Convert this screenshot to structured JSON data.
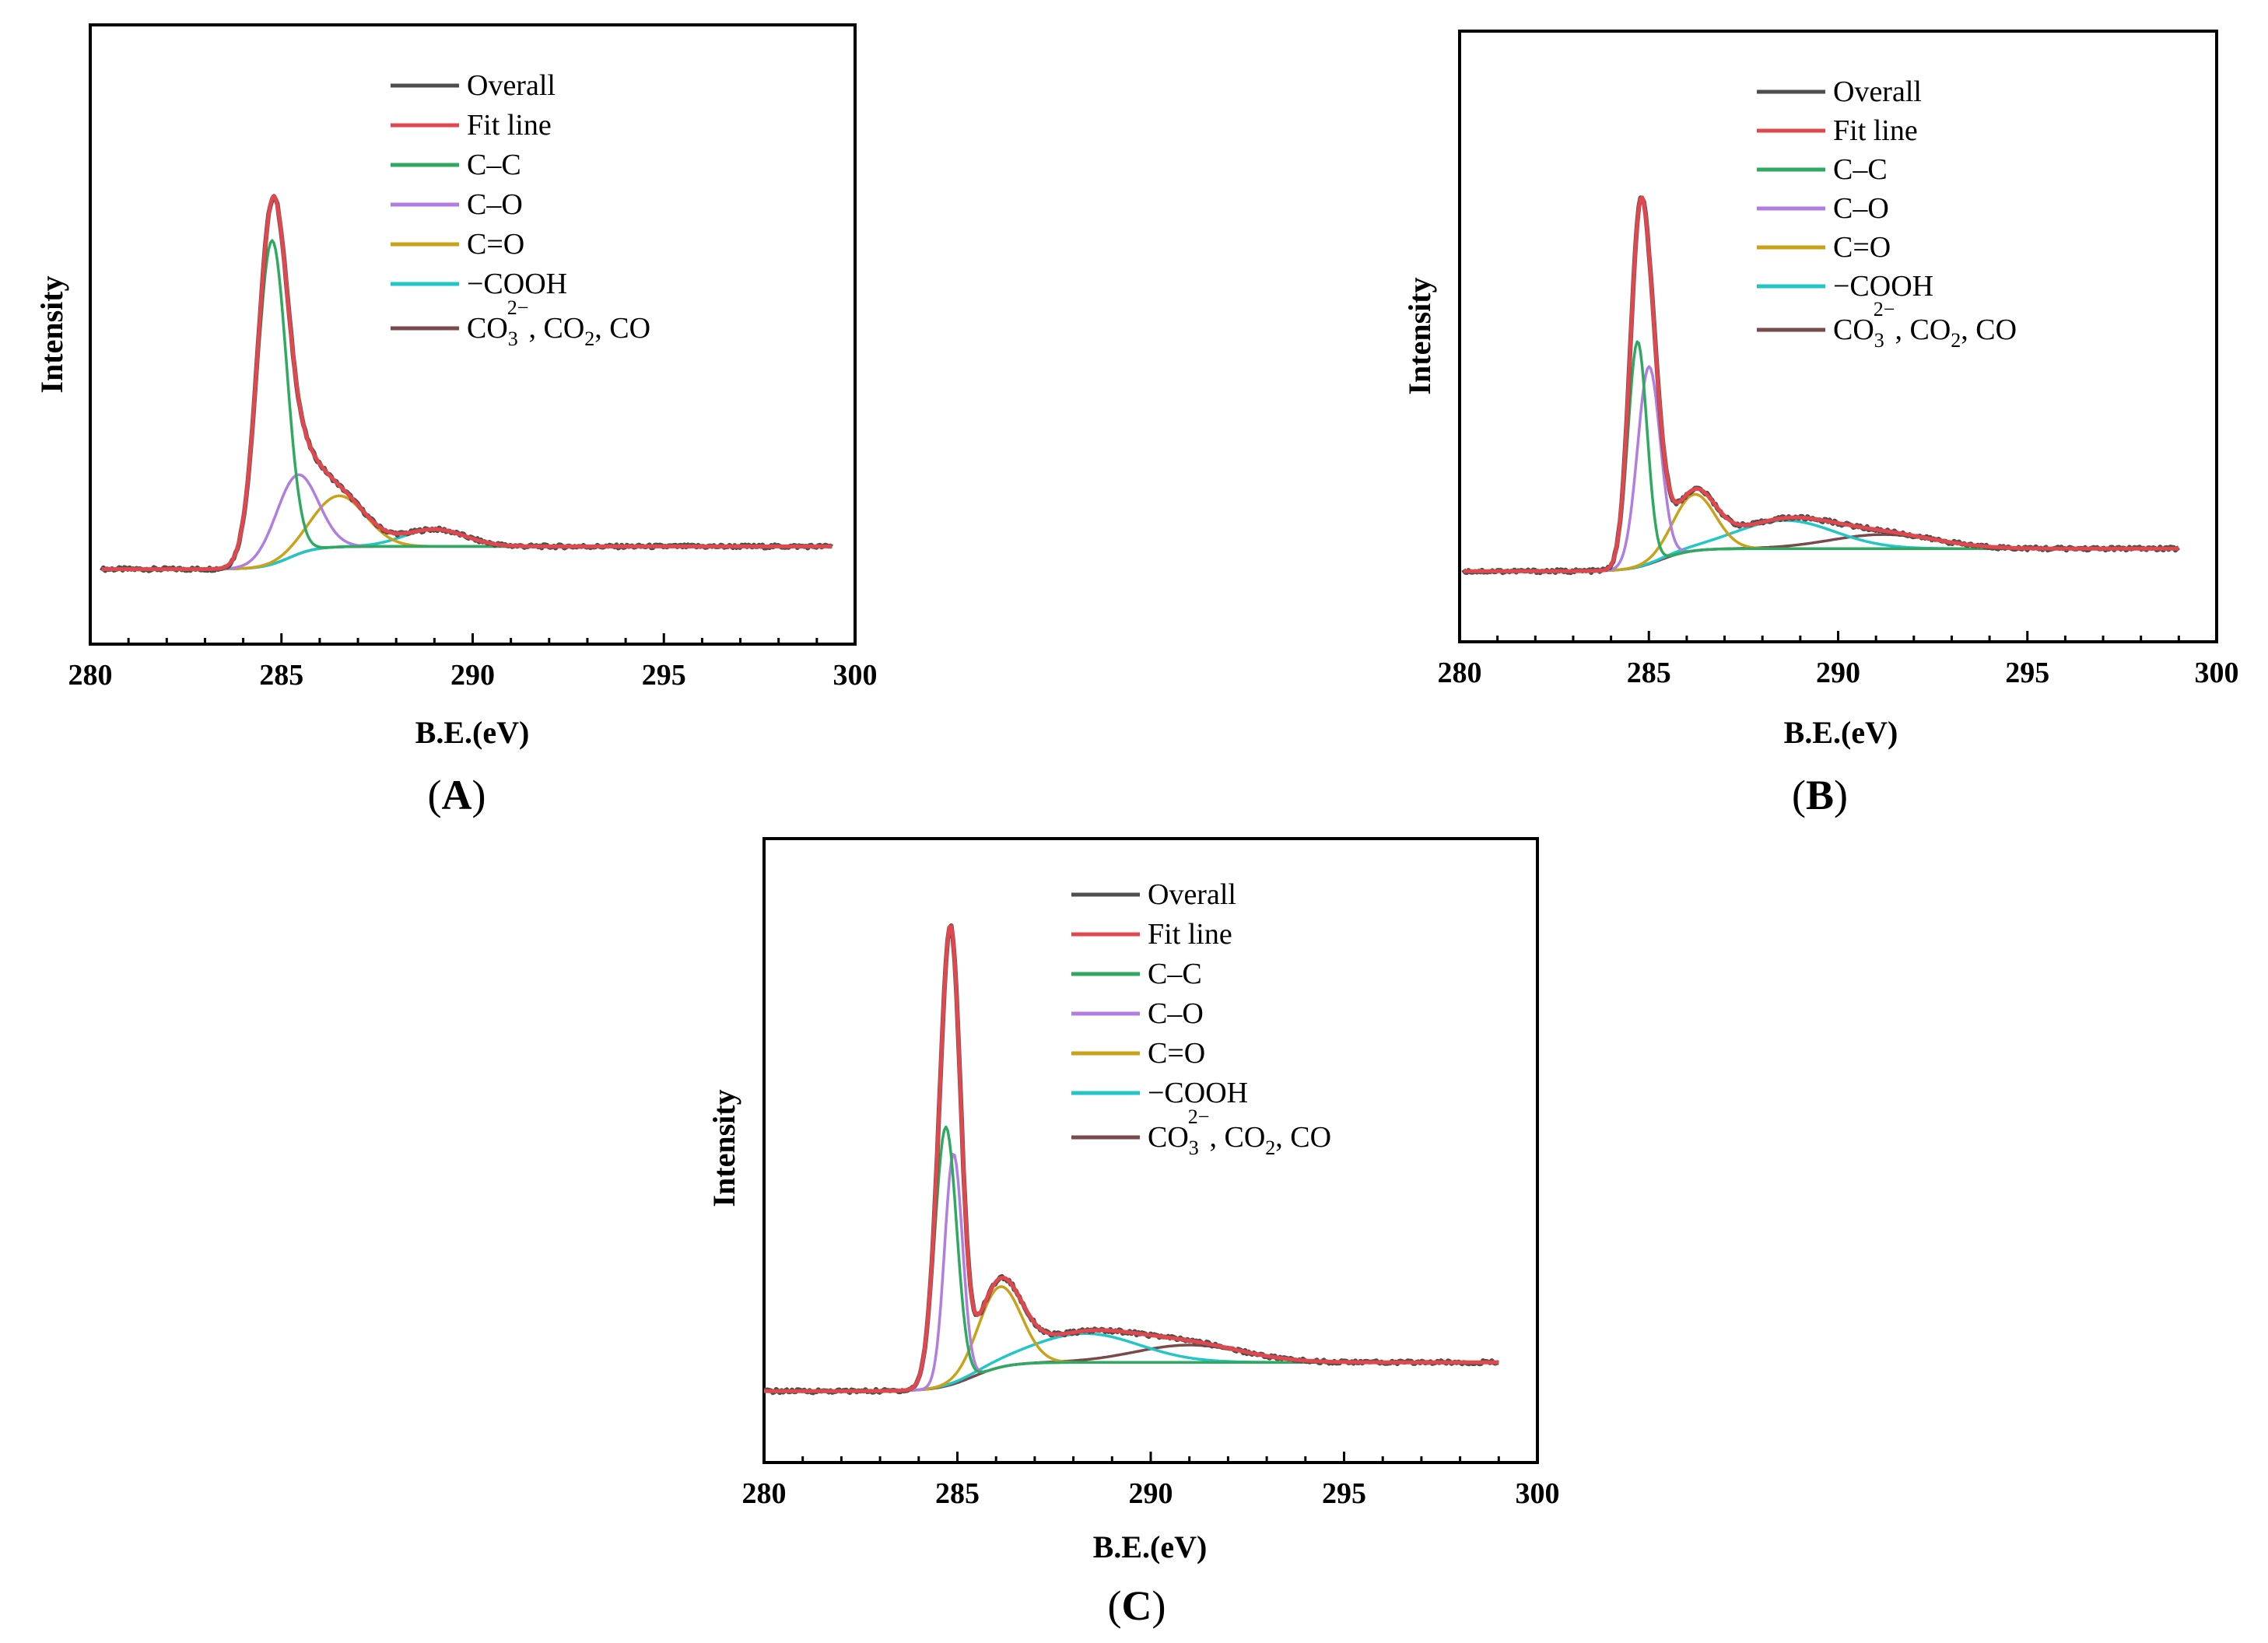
{
  "figure": {
    "panels": [
      {
        "id": "A",
        "label_open": "(",
        "label_letter": "A",
        "label_close": ")"
      },
      {
        "id": "B",
        "label_open": "(",
        "label_letter": "B",
        "label_close": ")"
      },
      {
        "id": "C",
        "label_open": "(",
        "label_letter": "C",
        "label_close": ")"
      }
    ]
  },
  "chart_data": [
    {
      "panel": "A",
      "type": "line",
      "title": "",
      "xlabel": "B.E.(eV)",
      "ylabel": "Intensity",
      "xlim": [
        280,
        300
      ],
      "ylim": [
        0,
        1.0
      ],
      "xticks": [
        280,
        285,
        290,
        295,
        300
      ],
      "grid": false,
      "legend_position": "top-right",
      "legend": [
        {
          "key": "overall",
          "label": "Overall",
          "color": "#4d4d4d"
        },
        {
          "key": "fit",
          "label": "Fit line",
          "color": "#e0484d"
        },
        {
          "key": "cc",
          "label": "C–C",
          "color": "#2eaa60"
        },
        {
          "key": "co",
          "label": "C–O",
          "color": "#b07ee0"
        },
        {
          "key": "ceo",
          "label": "C=O",
          "color": "#c9a21a"
        },
        {
          "key": "cooh",
          "label": "−COOH",
          "color": "#22c6c6"
        },
        {
          "key": "co3",
          "label": "CO3 2−, CO2, CO",
          "label_main": "CO",
          "label_sub1": "3",
          "label_sup": "2−",
          "label_rest": ", CO",
          "label_sub2": "2",
          "label_tail": ", CO",
          "color": "#7a4a4a"
        }
      ],
      "baseline": {
        "start": 0.08,
        "end": 0.12,
        "step_center": 285.2,
        "step_width": 0.7
      },
      "peaks": [
        {
          "key": "cc",
          "center": 284.75,
          "height": 0.57,
          "sigma": 0.38
        },
        {
          "key": "co",
          "center": 285.4,
          "height": 0.14,
          "sigma": 0.55
        },
        {
          "key": "ceo",
          "center": 286.5,
          "height": 0.09,
          "sigma": 0.7
        },
        {
          "key": "cooh",
          "center": 289.0,
          "height": 0.03,
          "sigma": 0.8
        },
        {
          "key": "co3",
          "center": 291.0,
          "height": 0.0,
          "sigma": 1.2
        }
      ],
      "x_range": [
        280.3,
        299.4
      ]
    },
    {
      "panel": "B",
      "type": "line",
      "title": "",
      "xlabel": "B.E.(eV)",
      "ylabel": "Intensity",
      "xlim": [
        280,
        300
      ],
      "ylim": [
        0,
        1.0
      ],
      "xticks": [
        280,
        285,
        290,
        295,
        300
      ],
      "grid": false,
      "legend_position": "top-right",
      "legend": [
        {
          "key": "overall",
          "label": "Overall",
          "color": "#4d4d4d"
        },
        {
          "key": "fit",
          "label": "Fit line",
          "color": "#e0484d"
        },
        {
          "key": "cc",
          "label": "C–C",
          "color": "#2eaa60"
        },
        {
          "key": "co",
          "label": "C–O",
          "color": "#b07ee0"
        },
        {
          "key": "ceo",
          "label": "C=O",
          "color": "#c9a21a"
        },
        {
          "key": "cooh",
          "label": "−COOH",
          "color": "#22c6c6"
        },
        {
          "key": "co3",
          "label": "CO3 2−, CO2, CO",
          "label_main": "CO",
          "label_sub1": "3",
          "label_sup": "2−",
          "label_rest": ", CO",
          "label_sub2": "2",
          "label_tail": ", CO",
          "color": "#7a4a4a"
        }
      ],
      "baseline": {
        "start": 0.07,
        "end": 0.11,
        "step_center": 285.3,
        "step_width": 0.8
      },
      "peaks": [
        {
          "key": "cc",
          "center": 284.7,
          "height": 0.4,
          "sigma": 0.25
        },
        {
          "key": "co",
          "center": 285.0,
          "height": 0.35,
          "sigma": 0.3
        },
        {
          "key": "ceo",
          "center": 286.2,
          "height": 0.1,
          "sigma": 0.55
        },
        {
          "key": "cooh",
          "center": 288.6,
          "height": 0.05,
          "sigma": 1.3
        },
        {
          "key": "co3",
          "center": 291.2,
          "height": 0.025,
          "sigma": 1.4
        }
      ],
      "x_range": [
        280.1,
        299.0
      ]
    },
    {
      "panel": "C",
      "type": "line",
      "title": "",
      "xlabel": "B.E.(eV)",
      "ylabel": "Intensity",
      "xlim": [
        280,
        300
      ],
      "ylim": [
        0,
        1.0
      ],
      "xticks": [
        280,
        285,
        290,
        295,
        300
      ],
      "grid": false,
      "legend_position": "top-right",
      "legend": [
        {
          "key": "overall",
          "label": "Overall",
          "color": "#4d4d4d"
        },
        {
          "key": "fit",
          "label": "Fit line",
          "color": "#e0484d"
        },
        {
          "key": "cc",
          "label": "C–C",
          "color": "#2eaa60"
        },
        {
          "key": "co",
          "label": "C–O",
          "color": "#b07ee0"
        },
        {
          "key": "ceo",
          "label": "C=O",
          "color": "#c9a21a"
        },
        {
          "key": "cooh",
          "label": "−COOH",
          "color": "#22c6c6"
        },
        {
          "key": "co3",
          "label": "CO3 2−, CO2, CO",
          "label_main": "CO",
          "label_sub1": "3",
          "label_sup": "2−",
          "label_rest": ", CO",
          "label_sub2": "2",
          "label_tail": ", CO",
          "color": "#7a4a4a"
        }
      ],
      "baseline": {
        "start": 0.07,
        "end": 0.12,
        "step_center": 285.4,
        "step_width": 0.9
      },
      "peaks": [
        {
          "key": "cc",
          "center": 284.7,
          "height": 0.45,
          "sigma": 0.28
        },
        {
          "key": "co",
          "center": 284.9,
          "height": 0.4,
          "sigma": 0.23
        },
        {
          "key": "ceo",
          "center": 286.1,
          "height": 0.14,
          "sigma": 0.55
        },
        {
          "key": "cooh",
          "center": 288.3,
          "height": 0.05,
          "sigma": 1.4
        },
        {
          "key": "co3",
          "center": 291.0,
          "height": 0.03,
          "sigma": 1.4
        }
      ],
      "x_range": [
        280.0,
        299.0
      ]
    }
  ]
}
